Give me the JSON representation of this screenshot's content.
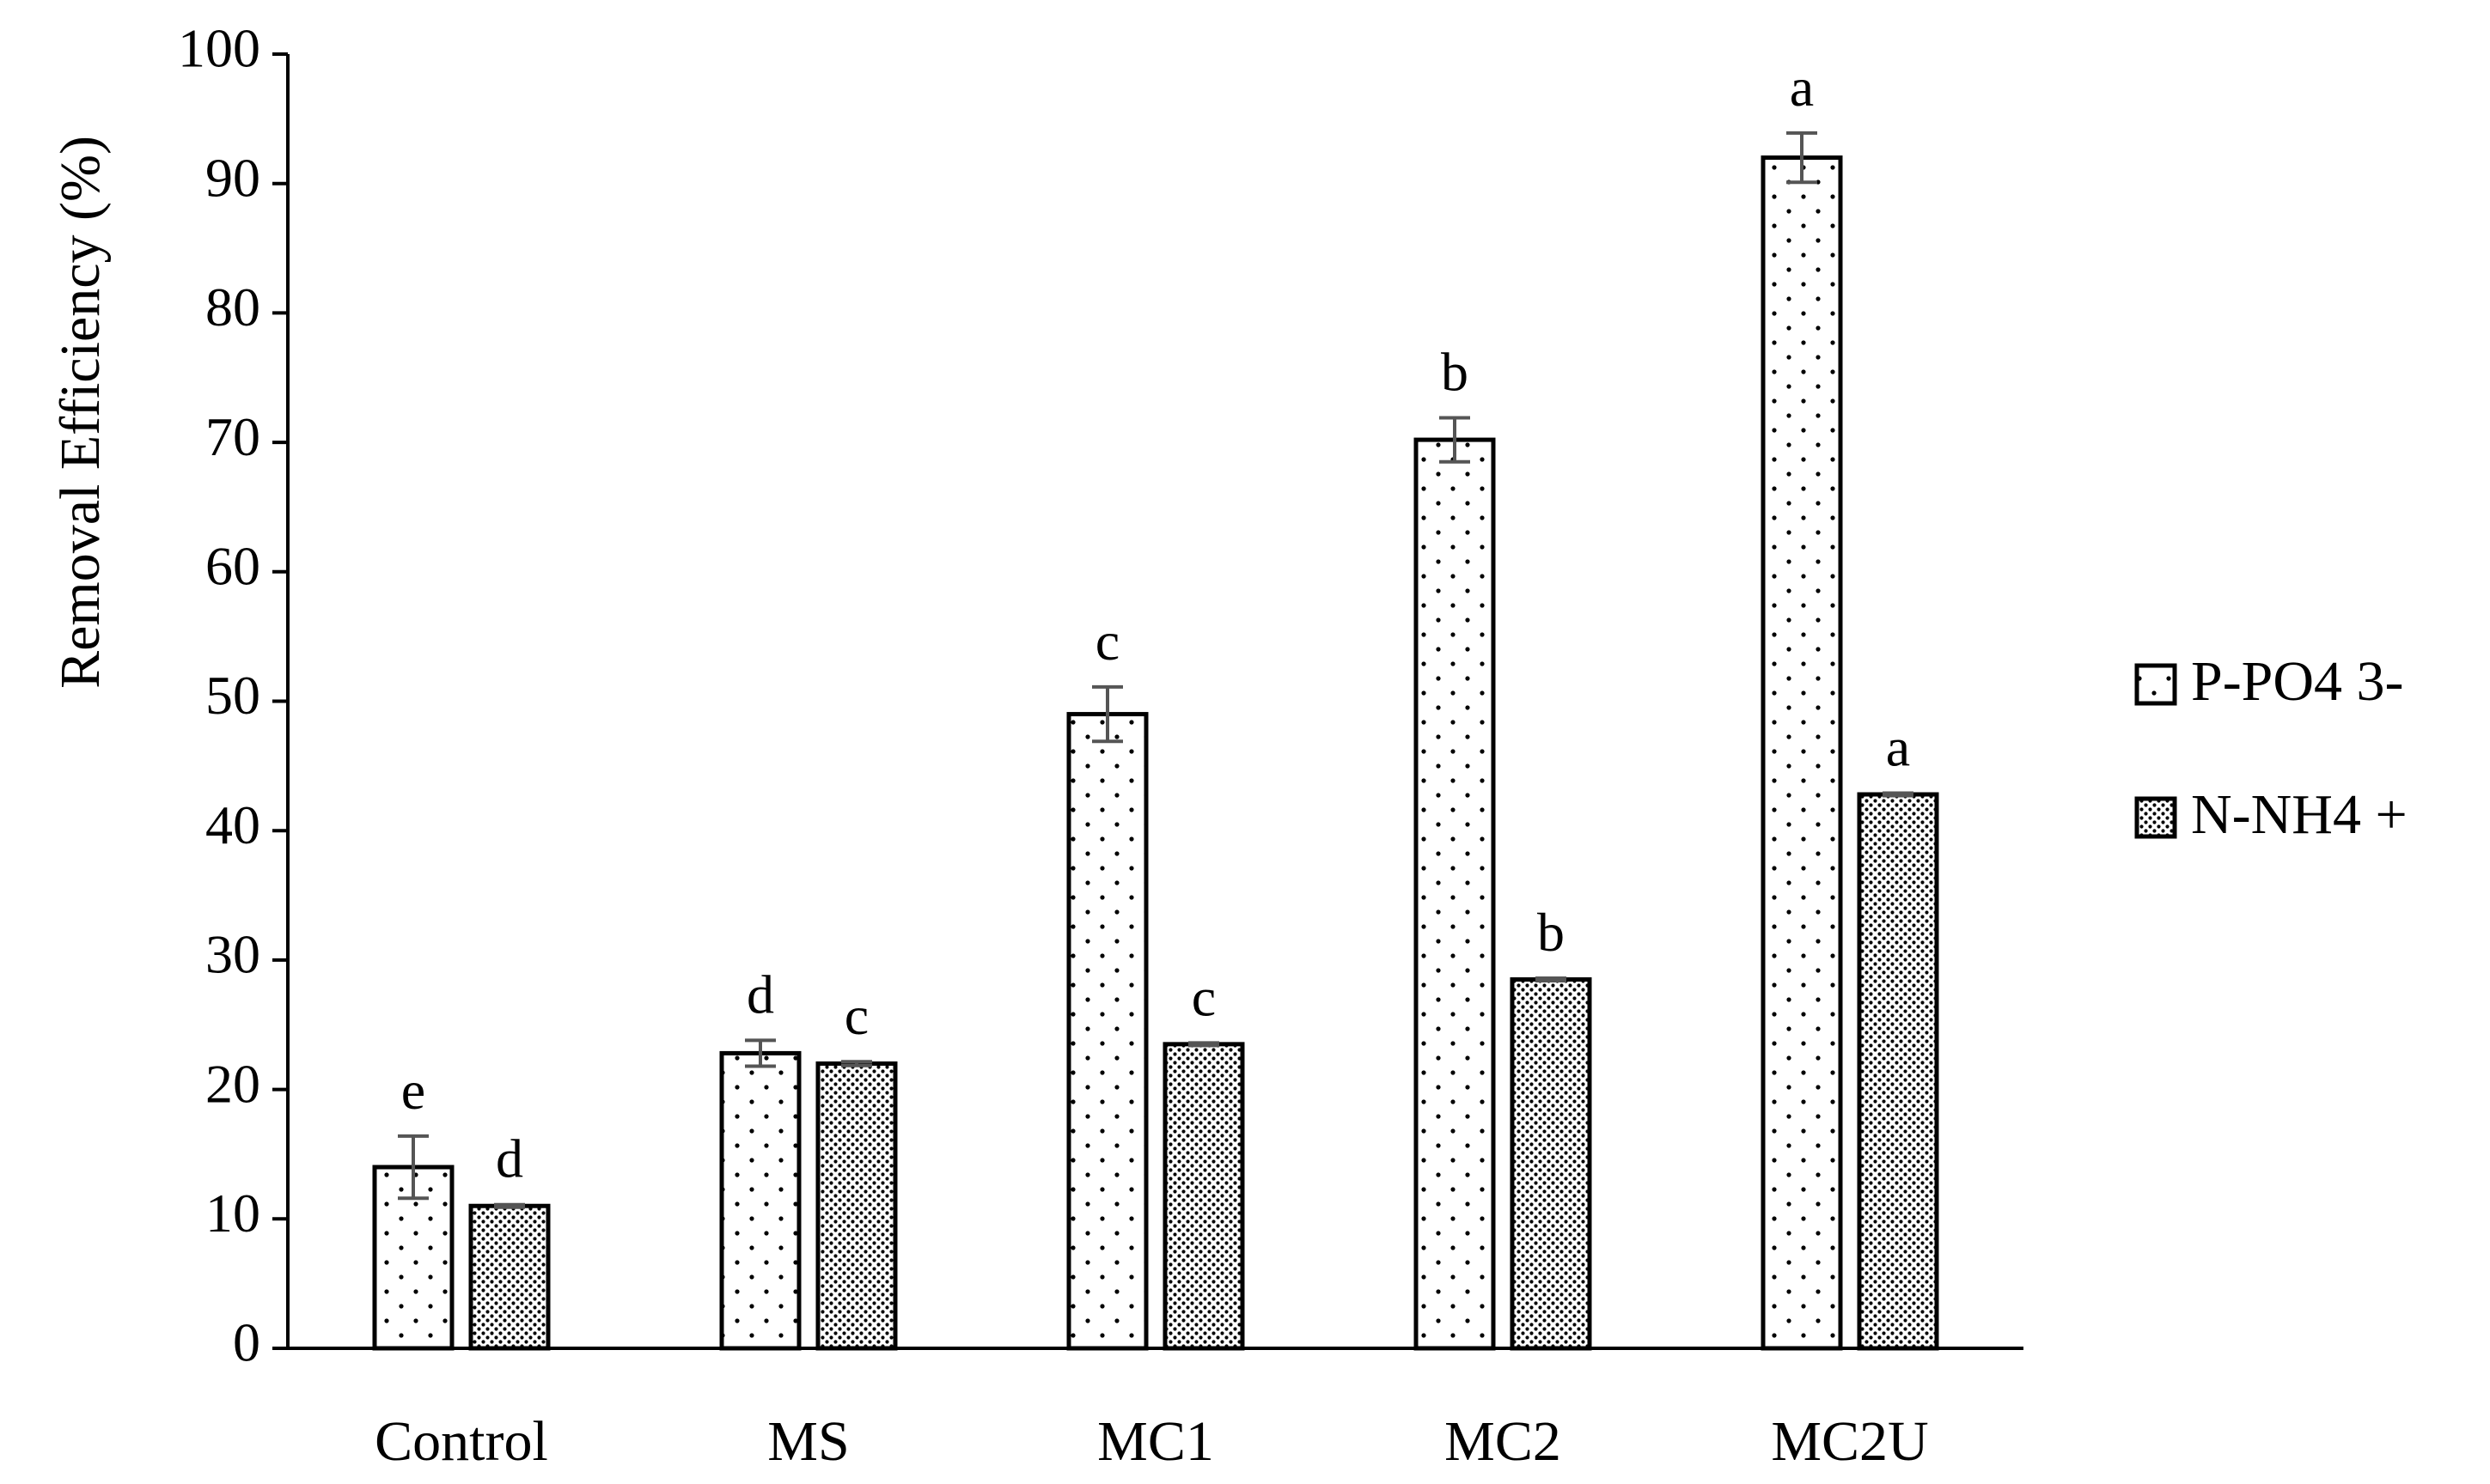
{
  "chart_data": {
    "type": "bar",
    "title": "",
    "xlabel": "",
    "ylabel": "Removal Efficiency (%)",
    "ylim": [
      0,
      100
    ],
    "yticks": [
      0,
      10,
      20,
      30,
      40,
      50,
      60,
      70,
      80,
      90,
      100
    ],
    "grid": false,
    "legend_position": "right",
    "categories": [
      "Control",
      "MS",
      "MC1",
      "MC2",
      "MC2U"
    ],
    "series": [
      {
        "name": "P-PO4 3-",
        "pattern": "sparse-dots",
        "values": [
          14,
          22.8,
          49,
          70.2,
          92
        ],
        "errors": [
          2.4,
          1.0,
          2.1,
          1.7,
          1.9
        ],
        "letters": [
          "e",
          "d",
          "c",
          "b",
          "a"
        ]
      },
      {
        "name": "N-NH4 +",
        "pattern": "dense-dots",
        "values": [
          11,
          22,
          23.5,
          28.5,
          42.8
        ],
        "errors": [
          0.1,
          0.15,
          0.1,
          0.1,
          0.1
        ],
        "letters": [
          "d",
          "c",
          "c",
          "b",
          "a"
        ]
      }
    ],
    "colors": {
      "bar_outline": "#000000",
      "error_bar": "#555555",
      "background": "#ffffff"
    }
  }
}
